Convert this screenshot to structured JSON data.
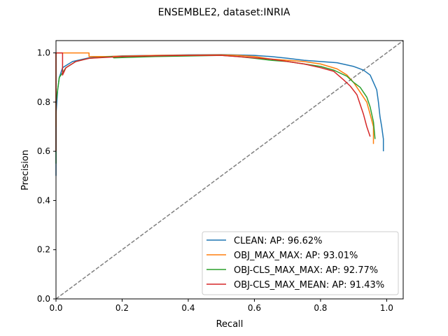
{
  "chart_data": {
    "type": "line",
    "title": "ENSEMBLE2, dataset:INRIA",
    "xlabel": "Recall",
    "ylabel": "Precision",
    "xlim": [
      0,
      1.05
    ],
    "ylim": [
      0,
      1.05
    ],
    "xticks": [
      0.0,
      0.2,
      0.4,
      0.6,
      0.8,
      1.0
    ],
    "yticks": [
      0.0,
      0.2,
      0.4,
      0.6,
      0.8,
      1.0
    ],
    "xtick_labels": [
      "0.0",
      "0.2",
      "0.4",
      "0.6",
      "0.8",
      "1.0"
    ],
    "ytick_labels": [
      "0.0",
      "0.2",
      "0.4",
      "0.6",
      "0.8",
      "1.0"
    ],
    "grid": false,
    "legend_position": "lower-right",
    "diagonal": {
      "x": [
        0,
        1.05
      ],
      "y": [
        0,
        1.05
      ],
      "color": "#808080",
      "style": "dashed"
    },
    "series": [
      {
        "name": "CLEAN: AP: 96.62%",
        "color": "#1f77b4",
        "x": [
          0.0,
          0.0,
          0.005,
          0.01,
          0.02,
          0.05,
          0.1,
          0.2,
          0.3,
          0.4,
          0.5,
          0.6,
          0.65,
          0.7,
          0.75,
          0.8,
          0.85,
          0.9,
          0.93,
          0.95,
          0.96,
          0.97,
          0.975,
          0.98,
          0.985,
          0.99,
          0.99
        ],
        "y": [
          0.5,
          0.75,
          0.85,
          0.9,
          0.94,
          0.965,
          0.98,
          0.988,
          0.99,
          0.992,
          0.993,
          0.99,
          0.985,
          0.978,
          0.97,
          0.965,
          0.96,
          0.945,
          0.93,
          0.91,
          0.88,
          0.85,
          0.8,
          0.74,
          0.7,
          0.65,
          0.6
        ]
      },
      {
        "name": "OBJ_MAX_MAX: AP: 93.01%",
        "color": "#ff7f0e",
        "x": [
          0.0,
          0.0,
          0.1,
          0.1,
          0.15,
          0.3,
          0.5,
          0.55,
          0.6,
          0.65,
          0.7,
          0.75,
          0.8,
          0.85,
          0.88,
          0.9,
          0.92,
          0.94,
          0.95,
          0.96,
          0.96
        ],
        "y": [
          0.7,
          1.0,
          1.0,
          0.985,
          0.985,
          0.99,
          0.992,
          0.99,
          0.985,
          0.975,
          0.97,
          0.965,
          0.955,
          0.935,
          0.91,
          0.88,
          0.84,
          0.8,
          0.75,
          0.7,
          0.63
        ]
      },
      {
        "name": "OBJ-CLS_MAX_MAX: AP: 92.77%",
        "color": "#2ca02c",
        "x": [
          0.0,
          0.0,
          0.01,
          0.03,
          0.06,
          0.1,
          0.17,
          0.175,
          0.3,
          0.5,
          0.55,
          0.6,
          0.65,
          0.7,
          0.75,
          0.8,
          0.84,
          0.88,
          0.9,
          0.92,
          0.94,
          0.95,
          0.96,
          0.965
        ],
        "y": [
          0.55,
          0.8,
          0.9,
          0.94,
          0.965,
          0.978,
          0.985,
          0.98,
          0.985,
          0.99,
          0.985,
          0.978,
          0.97,
          0.965,
          0.955,
          0.945,
          0.93,
          0.905,
          0.88,
          0.86,
          0.82,
          0.78,
          0.72,
          0.65
        ]
      },
      {
        "name": "OBJ-CLS_MAX_MEAN: AP: 91.43%",
        "color": "#d62728",
        "x": [
          0.0,
          0.0,
          0.02,
          0.02,
          0.03,
          0.06,
          0.1,
          0.2,
          0.3,
          0.4,
          0.5,
          0.6,
          0.65,
          0.7,
          0.75,
          0.8,
          0.84,
          0.87,
          0.89,
          0.91,
          0.92,
          0.93,
          0.94,
          0.95
        ],
        "y": [
          0.6,
          1.0,
          1.0,
          0.91,
          0.94,
          0.965,
          0.978,
          0.985,
          0.988,
          0.99,
          0.99,
          0.98,
          0.975,
          0.965,
          0.955,
          0.94,
          0.925,
          0.89,
          0.865,
          0.83,
          0.79,
          0.75,
          0.7,
          0.66
        ]
      }
    ]
  }
}
